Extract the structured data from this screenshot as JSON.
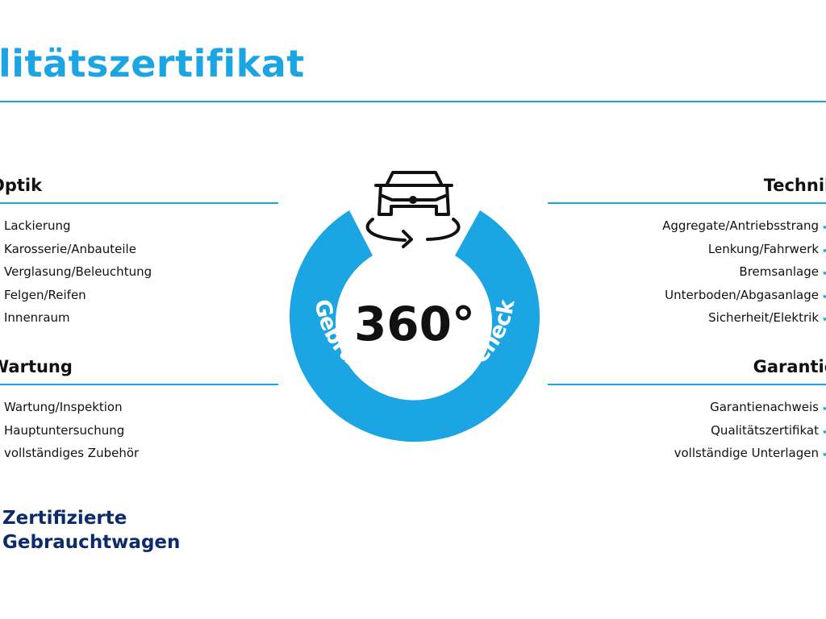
{
  "title": "litätszertifikat",
  "sections": {
    "optik": {
      "heading": "Optik",
      "items": [
        "Lackierung",
        "Karosserie/Anbauteile",
        "Verglasung/Beleuchtung",
        "Felgen/Reifen",
        "Innenraum"
      ]
    },
    "wartung": {
      "heading": "Wartung",
      "items": [
        "Wartung/Inspektion",
        "Hauptuntersuchung",
        "vollständiges Zubehör"
      ]
    },
    "technik": {
      "heading": "Technik",
      "items": [
        "Aggregate/Antriebsstrang",
        "Lenkung/Fahrwerk",
        "Bremsanlage",
        "Unterboden/Abgasanlage",
        "Sicherheit/Elektrik"
      ]
    },
    "garantie": {
      "heading": "Garantie",
      "items": [
        "Garantienachweis",
        "Qualitätszertifikat",
        "vollständige Unterlagen"
      ]
    }
  },
  "badge": {
    "degrees": "360°",
    "arc_text": "Gebrauchtwagen-Check",
    "icon": "car-rotate-icon"
  },
  "footer": {
    "line1": "Zertifizierte",
    "line2": "Gebrauchtwagen"
  },
  "colors": {
    "accent": "#1ca5e3",
    "navy": "#0d2b6b"
  }
}
